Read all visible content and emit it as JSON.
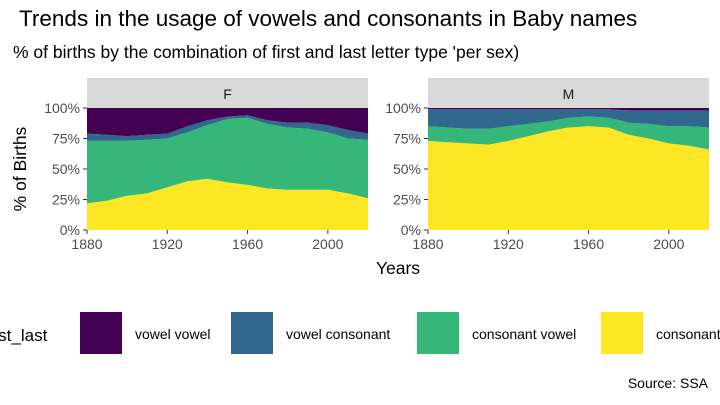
{
  "title": "Trends in the usage of vowels and consonants in Baby names",
  "subtitle": "% of births by the combination of first and last letter type 'per sex)",
  "caption": "Source: SSA",
  "legend": {
    "title": "first_last",
    "items": [
      {
        "label": "vowel vowel",
        "color": "#440154"
      },
      {
        "label": "vowel consonant",
        "color": "#31688e"
      },
      {
        "label": "consonant vowel",
        "color": "#35b779"
      },
      {
        "label": "consonant consonant",
        "color": "#fde725"
      }
    ]
  },
  "chart_data": {
    "type": "area",
    "stacked": true,
    "facets": [
      "F",
      "M"
    ],
    "xlabel": "Years",
    "ylabel": "% of Births",
    "xlim": [
      1880,
      2020
    ],
    "ylim": [
      0,
      1
    ],
    "xticks": [
      1880,
      1920,
      1960,
      2000
    ],
    "yticks": [
      "0%",
      "25%",
      "50%",
      "75%",
      "100%"
    ],
    "x": [
      1880,
      1890,
      1900,
      1910,
      1920,
      1930,
      1940,
      1950,
      1960,
      1970,
      1980,
      1990,
      2000,
      2010,
      2020
    ],
    "series_F": [
      {
        "name": "consonant consonant",
        "values": [
          0.22,
          0.24,
          0.28,
          0.3,
          0.35,
          0.4,
          0.42,
          0.39,
          0.37,
          0.34,
          0.33,
          0.33,
          0.33,
          0.3,
          0.26
        ]
      },
      {
        "name": "consonant vowel",
        "values": [
          0.51,
          0.49,
          0.45,
          0.44,
          0.4,
          0.4,
          0.44,
          0.52,
          0.55,
          0.53,
          0.51,
          0.5,
          0.47,
          0.45,
          0.48
        ]
      },
      {
        "name": "vowel consonant",
        "values": [
          0.06,
          0.05,
          0.04,
          0.04,
          0.04,
          0.05,
          0.04,
          0.02,
          0.02,
          0.03,
          0.04,
          0.05,
          0.06,
          0.07,
          0.05
        ]
      },
      {
        "name": "vowel vowel",
        "values": [
          0.21,
          0.22,
          0.23,
          0.22,
          0.21,
          0.15,
          0.1,
          0.07,
          0.06,
          0.1,
          0.12,
          0.12,
          0.14,
          0.18,
          0.21
        ]
      }
    ],
    "series_M": [
      {
        "name": "consonant consonant",
        "values": [
          0.73,
          0.72,
          0.71,
          0.7,
          0.73,
          0.77,
          0.81,
          0.84,
          0.85,
          0.84,
          0.78,
          0.75,
          0.71,
          0.69,
          0.66
        ]
      },
      {
        "name": "consonant vowel",
        "values": [
          0.12,
          0.12,
          0.12,
          0.13,
          0.12,
          0.1,
          0.08,
          0.08,
          0.08,
          0.08,
          0.1,
          0.12,
          0.14,
          0.16,
          0.18
        ]
      },
      {
        "name": "vowel consonant",
        "values": [
          0.14,
          0.15,
          0.16,
          0.16,
          0.14,
          0.12,
          0.1,
          0.07,
          0.06,
          0.07,
          0.1,
          0.11,
          0.13,
          0.13,
          0.14
        ]
      },
      {
        "name": "vowel vowel",
        "values": [
          0.01,
          0.01,
          0.01,
          0.01,
          0.01,
          0.01,
          0.01,
          0.01,
          0.01,
          0.01,
          0.02,
          0.02,
          0.02,
          0.02,
          0.02
        ]
      }
    ]
  }
}
